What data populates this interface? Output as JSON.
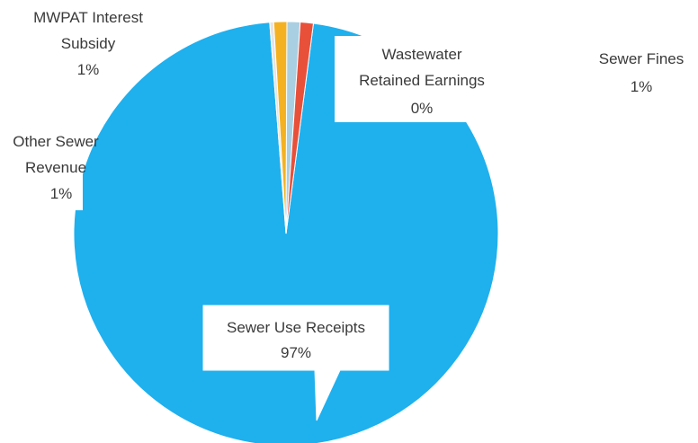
{
  "chart_data": {
    "type": "pie",
    "slices": [
      {
        "label": "Sewer Use Receipts",
        "percent_label": "97%",
        "value": 97,
        "color": "#1fb0ee"
      },
      {
        "label": "Other Sewer Revenue",
        "percent_label": "1%",
        "value": 1,
        "color": "#e8503a"
      },
      {
        "label": "MWPAT Interest Subsidy",
        "percent_label": "1%",
        "value": 1,
        "color": "#a9cfe2"
      },
      {
        "label": "Sewer Fines",
        "percent_label": "1%",
        "value": 1,
        "color": "#f4b222"
      },
      {
        "label": "Wastewater Retained Earnings",
        "percent_label": "0%",
        "value": 0.3,
        "color": "#e4e4e4"
      }
    ]
  }
}
